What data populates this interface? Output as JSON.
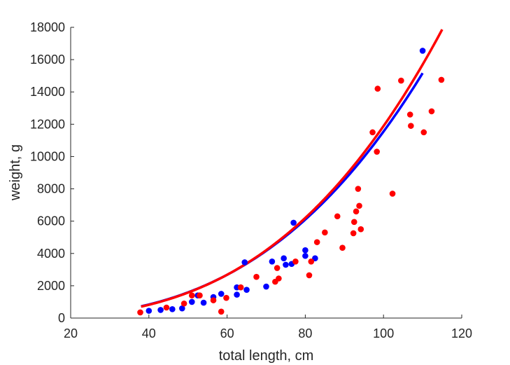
{
  "chart_data": {
    "type": "scatter",
    "xlabel": "total length, cm",
    "ylabel": "weight, g",
    "xlim": [
      20,
      120
    ],
    "ylim": [
      0,
      18000
    ],
    "x_ticks": [
      20,
      40,
      60,
      80,
      100,
      120
    ],
    "y_ticks": [
      0,
      2000,
      4000,
      6000,
      8000,
      10000,
      12000,
      14000,
      16000,
      18000
    ],
    "grid": false,
    "legend": "none",
    "series": [
      {
        "color": "#0000ff",
        "points": [
          [
            40,
            450
          ],
          [
            43,
            500
          ],
          [
            46,
            550
          ],
          [
            48.5,
            600
          ],
          [
            51,
            1000
          ],
          [
            52.5,
            1400
          ],
          [
            54,
            950
          ],
          [
            56.5,
            1300
          ],
          [
            58.5,
            1500
          ],
          [
            62.5,
            1450
          ],
          [
            62.5,
            1900
          ],
          [
            64.5,
            3450
          ],
          [
            65,
            1750
          ],
          [
            70,
            1950
          ],
          [
            71.5,
            3500
          ],
          [
            74.5,
            3700
          ],
          [
            75,
            3300
          ],
          [
            76.5,
            3350
          ],
          [
            77,
            5900
          ],
          [
            80,
            3850
          ],
          [
            80,
            4200
          ],
          [
            82.5,
            3700
          ],
          [
            110,
            16550
          ]
        ],
        "fit": {
          "a": 0.022,
          "b": 2.86,
          "x_range": [
            38,
            110
          ]
        }
      },
      {
        "color": "#ff0000",
        "points": [
          [
            37.8,
            350
          ],
          [
            44.5,
            650
          ],
          [
            49,
            900
          ],
          [
            51,
            1400
          ],
          [
            53,
            1400
          ],
          [
            56.5,
            1100
          ],
          [
            58.5,
            400
          ],
          [
            59.8,
            1250
          ],
          [
            63.5,
            1900
          ],
          [
            67.5,
            2550
          ],
          [
            72.3,
            2250
          ],
          [
            72.8,
            3100
          ],
          [
            73.2,
            2450
          ],
          [
            77.5,
            3500
          ],
          [
            81,
            2650
          ],
          [
            81.5,
            3500
          ],
          [
            83,
            4700
          ],
          [
            85,
            5300
          ],
          [
            88.2,
            6300
          ],
          [
            89.5,
            4350
          ],
          [
            92.3,
            5250
          ],
          [
            92.5,
            5950
          ],
          [
            93,
            6600
          ],
          [
            93.5,
            8000
          ],
          [
            93.8,
            6950
          ],
          [
            94.2,
            5500
          ],
          [
            97.2,
            11500
          ],
          [
            98.3,
            10300
          ],
          [
            98.5,
            14200
          ],
          [
            102.3,
            7700
          ],
          [
            104.5,
            14700
          ],
          [
            106.8,
            12600
          ],
          [
            107,
            11900
          ],
          [
            110.3,
            11500
          ],
          [
            112.3,
            12800
          ],
          [
            114.8,
            14750
          ]
        ],
        "fit": {
          "a": 0.0175,
          "b": 2.916,
          "x_range": [
            38,
            115
          ]
        }
      }
    ]
  }
}
